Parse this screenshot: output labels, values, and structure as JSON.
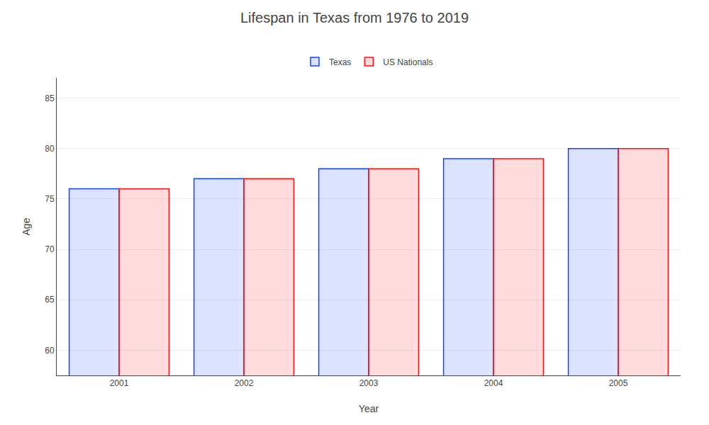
{
  "chart_data": {
    "type": "bar",
    "title": "Lifespan in Texas from 1976 to 2019",
    "xlabel": "Year",
    "ylabel": "Age",
    "categories": [
      "2001",
      "2002",
      "2003",
      "2004",
      "2005"
    ],
    "series": [
      {
        "name": "Texas",
        "color": "#1144ff",
        "values": [
          76,
          77,
          78,
          79,
          80
        ]
      },
      {
        "name": "US Nationals",
        "color": "#ff1111",
        "values": [
          76,
          77,
          78,
          79,
          80
        ]
      }
    ],
    "ylim": [
      57.5,
      87
    ],
    "yticks": [
      60,
      65,
      70,
      75,
      80,
      85
    ],
    "grid": true,
    "legend": "top"
  }
}
